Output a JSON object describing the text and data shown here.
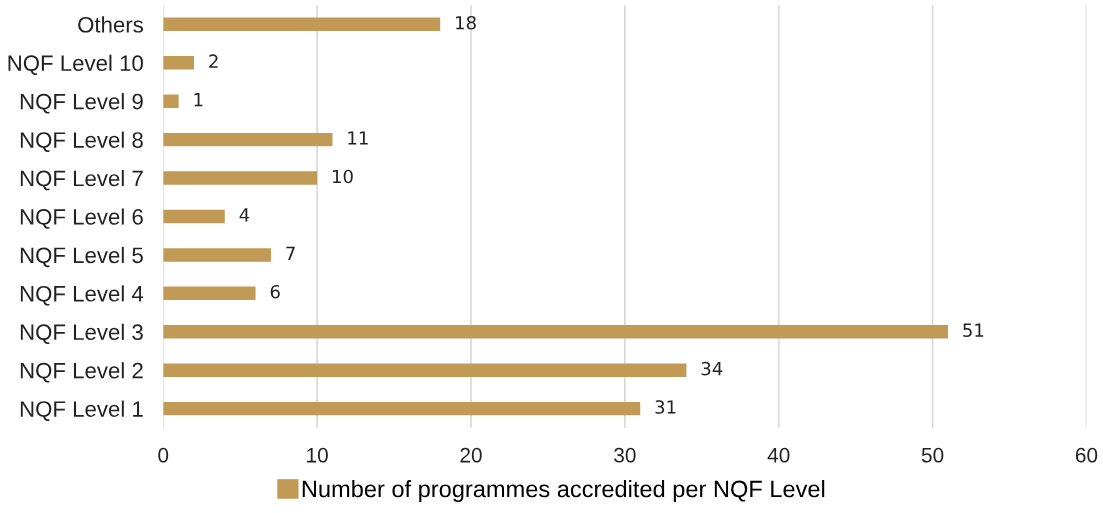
{
  "chart_data": {
    "type": "bar",
    "orientation": "horizontal",
    "categories": [
      "Others",
      "NQF Level 10",
      "NQF Level 9",
      "NQF Level 8",
      "NQF Level 7",
      "NQF Level 6",
      "NQF Level 5",
      "NQF Level 4",
      "NQF Level 3",
      "NQF Level 2",
      "NQF Level 1"
    ],
    "series": [
      {
        "name": "Number of programmes accredited per NQF Level",
        "color": "#c19a55",
        "values": [
          18,
          2,
          1,
          11,
          10,
          4,
          7,
          6,
          51,
          34,
          31
        ]
      }
    ],
    "xlim": [
      0,
      60
    ],
    "xticks": [
      0,
      10,
      20,
      30,
      40,
      50,
      60
    ],
    "grid": "x",
    "legend": "bottom",
    "data_labels": true
  }
}
